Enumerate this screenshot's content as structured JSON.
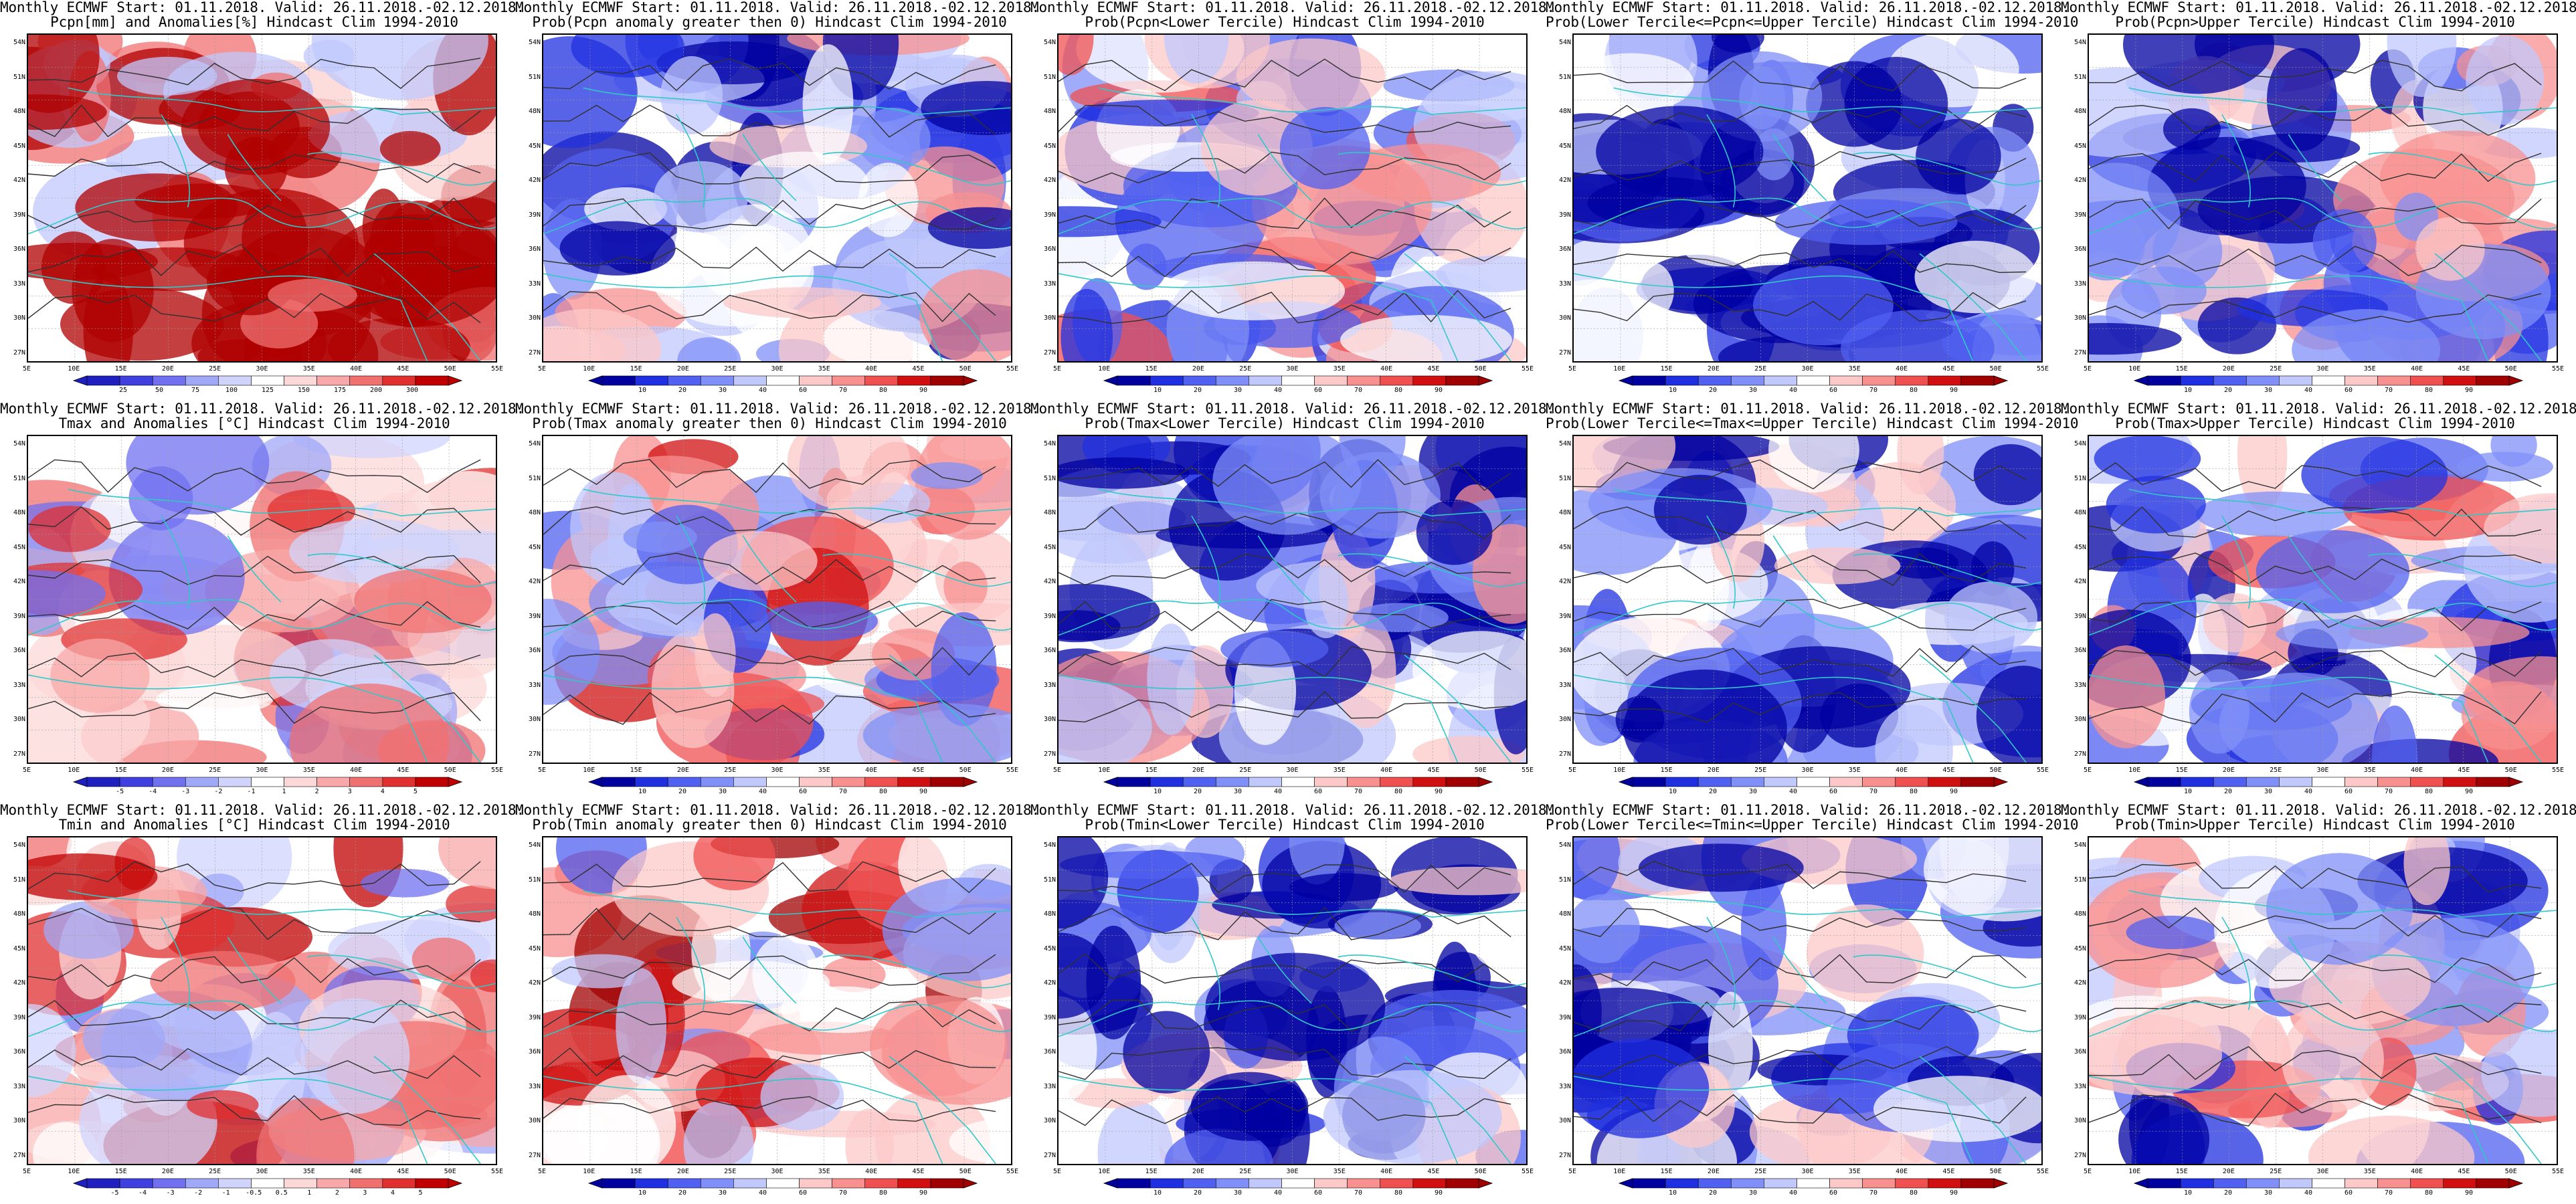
{
  "header_line": "Monthly ECMWF Start: 01.11.2018. Valid: 26.11.2018.-02.12.2018.",
  "lat_labels": [
    "54N",
    "51N",
    "48N",
    "45N",
    "42N",
    "39N",
    "36N",
    "33N",
    "30N",
    "27N"
  ],
  "lon_labels": [
    "5E",
    "10E",
    "15E",
    "20E",
    "25E",
    "30E",
    "35E",
    "40E",
    "45E",
    "50E",
    "55E"
  ],
  "colors": {
    "coast": "#30c8c8",
    "contour": "#303030",
    "anom_scale": [
      "#2020c0",
      "#4040e0",
      "#7070f0",
      "#a0a8f8",
      "#d0d4fc",
      "#ffffff",
      "#fcd8d8",
      "#f8a8a8",
      "#f07070",
      "#e03030",
      "#c00000"
    ],
    "prob_scale": [
      "#0000a0",
      "#2030e0",
      "#5060f0",
      "#8090f8",
      "#c0c8fc",
      "#ffffff",
      "#fcc8c8",
      "#f89090",
      "#f05050",
      "#d01010",
      "#a00000"
    ]
  },
  "panels": [
    {
      "id": "pcpn-anom",
      "subtitle": "Pcpn[mm] and Anomalies[%] Hindcast Clim 1994-2010",
      "scale": "precip",
      "ticks": [
        "25",
        "50",
        "75",
        "100",
        "125",
        "150",
        "175",
        "200",
        "300"
      ],
      "bias": 0.35
    },
    {
      "id": "pcpn-prob-gt0",
      "subtitle": "Prob(Pcpn anomaly greater then 0) Hindcast Clim 1994-2010",
      "scale": "prob",
      "ticks": [
        "10",
        "20",
        "30",
        "40",
        "60",
        "70",
        "80",
        "90"
      ],
      "bias": -0.3
    },
    {
      "id": "pcpn-prob-lower",
      "subtitle": "Prob(Pcpn<Lower Tercile) Hindcast Clim 1994-2010",
      "scale": "prob",
      "ticks": [
        "10",
        "20",
        "30",
        "40",
        "60",
        "70",
        "80",
        "90"
      ],
      "bias": -0.1
    },
    {
      "id": "pcpn-prob-middle",
      "subtitle": "Prob(Lower Tercile<=Pcpn<=Upper Tercile) Hindcast Clim 1994-2010",
      "scale": "prob",
      "ticks": [
        "10",
        "20",
        "30",
        "40",
        "60",
        "70",
        "80",
        "90"
      ],
      "bias": -0.75
    },
    {
      "id": "pcpn-prob-upper",
      "subtitle": "Prob(Pcpn>Upper Tercile) Hindcast Clim 1994-2010",
      "scale": "prob",
      "ticks": [
        "10",
        "20",
        "30",
        "40",
        "60",
        "70",
        "80",
        "90"
      ],
      "bias": -0.35
    },
    {
      "id": "tmax-anom",
      "subtitle": "Tmax and Anomalies [°C] Hindcast Clim 1994-2010",
      "scale": "anom",
      "ticks": [
        "-5",
        "-4",
        "-3",
        "-2",
        "-1",
        "1",
        "2",
        "3",
        "4",
        "5"
      ],
      "bias": 0.1
    },
    {
      "id": "tmax-prob-gt0",
      "subtitle": "Prob(Tmax anomaly greater then 0) Hindcast Clim 1994-2010",
      "scale": "prob",
      "ticks": [
        "10",
        "20",
        "30",
        "40",
        "60",
        "70",
        "80",
        "90"
      ],
      "bias": 0.05
    },
    {
      "id": "tmax-prob-lower",
      "subtitle": "Prob(Tmax<Lower Tercile) Hindcast Clim 1994-2010",
      "scale": "prob",
      "ticks": [
        "10",
        "20",
        "30",
        "40",
        "60",
        "70",
        "80",
        "90"
      ],
      "bias": -0.45
    },
    {
      "id": "tmax-prob-middle",
      "subtitle": "Prob(Lower Tercile<=Tmax<=Upper Tercile) Hindcast Clim 1994-2010",
      "scale": "prob",
      "ticks": [
        "10",
        "20",
        "30",
        "40",
        "60",
        "70",
        "80",
        "90"
      ],
      "bias": -0.5
    },
    {
      "id": "tmax-prob-upper",
      "subtitle": "Prob(Tmax>Upper Tercile) Hindcast Clim 1994-2010",
      "scale": "prob",
      "ticks": [
        "10",
        "20",
        "30",
        "40",
        "60",
        "70",
        "80",
        "90"
      ],
      "bias": -0.25
    },
    {
      "id": "tmin-anom",
      "subtitle": "Tmin and Anomalies [°C] Hindcast Clim 1994-2010",
      "scale": "anom",
      "ticks": [
        "-5",
        "-4",
        "-3",
        "-2",
        "-1",
        "-0.5",
        "0.5",
        "1",
        "2",
        "3",
        "4",
        "5"
      ],
      "bias": 0.2
    },
    {
      "id": "tmin-prob-gt0",
      "subtitle": "Prob(Tmin anomaly greater then 0) Hindcast Clim 1994-2010",
      "scale": "prob",
      "ticks": [
        "10",
        "20",
        "30",
        "40",
        "60",
        "70",
        "80",
        "90"
      ],
      "bias": 0.25
    },
    {
      "id": "tmin-prob-lower",
      "subtitle": "Prob(Tmin<Lower Tercile) Hindcast Clim 1994-2010",
      "scale": "prob",
      "ticks": [
        "10",
        "20",
        "30",
        "40",
        "60",
        "70",
        "80",
        "90"
      ],
      "bias": -0.6
    },
    {
      "id": "tmin-prob-middle",
      "subtitle": "Prob(Lower Tercile<=Tmin<=Upper Tercile) Hindcast Clim 1994-2010",
      "scale": "prob",
      "ticks": [
        "10",
        "20",
        "30",
        "40",
        "60",
        "70",
        "80",
        "90"
      ],
      "bias": -0.5
    },
    {
      "id": "tmin-prob-upper",
      "subtitle": "Prob(Tmin>Upper Tercile) Hindcast Clim 1994-2010",
      "scale": "prob",
      "ticks": [
        "10",
        "20",
        "30",
        "40",
        "60",
        "70",
        "80",
        "90"
      ],
      "bias": -0.2
    }
  ]
}
